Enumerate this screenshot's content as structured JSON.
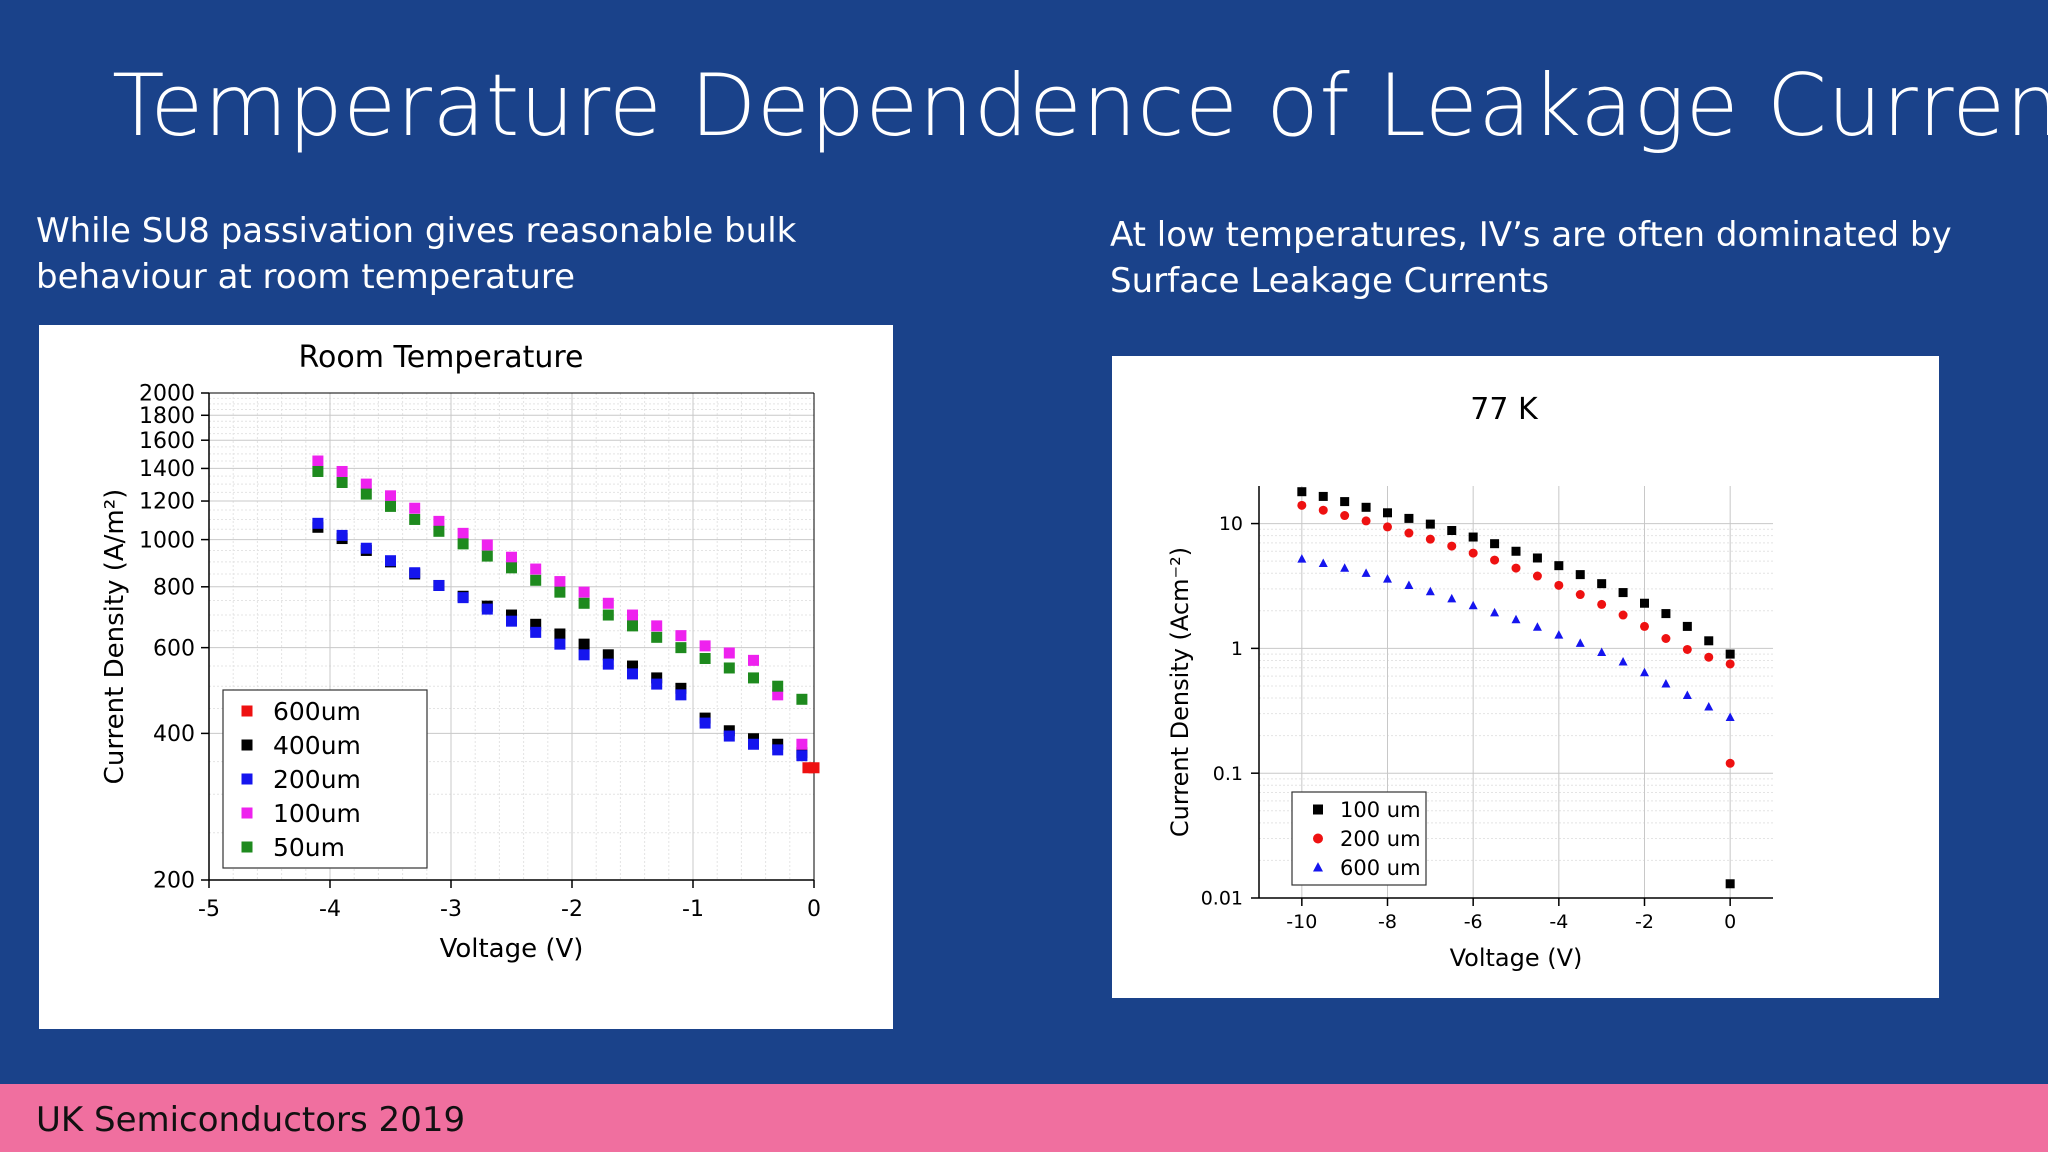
{
  "slide": {
    "title": "Temperature Dependence of Leakage Current",
    "left_caption": "While SU8 passivation gives reasonable bulk behaviour at room temperature",
    "right_caption": "At low temperatures, IV’s are often dominated by Surface Leakage Currents",
    "footer": "UK Semiconductors 2019"
  },
  "chart_data": [
    {
      "type": "scatter",
      "title": "Room Temperature",
      "xlabel": "Voltage (V)",
      "ylabel": "Current Density (A/m²)",
      "xlim": [
        -5,
        0
      ],
      "ylim": [
        200,
        2000
      ],
      "y_scale": "log",
      "x_ticks": [
        "-5",
        "-4",
        "-3",
        "-2",
        "-1",
        "0"
      ],
      "y_ticks": [
        "200",
        "400",
        "600",
        "800",
        "1000",
        "1200",
        "1400",
        "1600",
        "1800",
        "2000"
      ],
      "grid": true,
      "legend_position": "bottom-left",
      "series": [
        {
          "name": "600um",
          "marker": "square",
          "color": "#ee1111",
          "x": [
            -0.05,
            0
          ],
          "y": [
            340,
            340
          ]
        },
        {
          "name": "400um",
          "marker": "square",
          "color": "#000000",
          "x": [
            -4.1,
            -3.9,
            -3.7,
            -3.5,
            -3.3,
            -3.1,
            -2.9,
            -2.7,
            -2.5,
            -2.3,
            -2.1,
            -1.9,
            -1.7,
            -1.5,
            -1.3,
            -1.1,
            -0.9,
            -0.7,
            -0.5,
            -0.3,
            -0.1
          ],
          "y": [
            1060,
            1005,
            950,
            900,
            850,
            805,
            765,
            730,
            700,
            670,
            640,
            610,
            580,
            550,
            520,
            495,
            430,
            405,
            390,
            380,
            365
          ]
        },
        {
          "name": "200um",
          "marker": "square",
          "color": "#1515ee",
          "x": [
            -4.1,
            -3.9,
            -3.7,
            -3.5,
            -3.3,
            -3.1,
            -2.9,
            -2.7,
            -2.5,
            -2.3,
            -2.1,
            -1.9,
            -1.7,
            -1.5,
            -1.3,
            -1.1,
            -0.9,
            -0.7,
            -0.5,
            -0.3,
            -0.1
          ],
          "y": [
            1080,
            1020,
            960,
            905,
            855,
            805,
            760,
            720,
            680,
            645,
            610,
            580,
            555,
            530,
            505,
            480,
            420,
            395,
            380,
            370,
            360
          ]
        },
        {
          "name": "100um",
          "marker": "square",
          "color": "#ee22ee",
          "x": [
            -4.1,
            -3.9,
            -3.7,
            -3.5,
            -3.3,
            -3.1,
            -2.9,
            -2.7,
            -2.5,
            -2.3,
            -2.1,
            -1.9,
            -1.7,
            -1.5,
            -1.3,
            -1.1,
            -0.9,
            -0.7,
            -0.5,
            -0.3,
            -0.1
          ],
          "y": [
            1450,
            1380,
            1300,
            1230,
            1160,
            1090,
            1030,
            975,
            920,
            870,
            820,
            780,
            740,
            700,
            665,
            635,
            605,
            585,
            565,
            480,
            380
          ]
        },
        {
          "name": "50um",
          "marker": "square",
          "color": "#1e8a1e",
          "x": [
            -4.1,
            -3.9,
            -3.7,
            -3.5,
            -3.3,
            -3.1,
            -2.9,
            -2.7,
            -2.5,
            -2.3,
            -2.1,
            -1.9,
            -1.7,
            -1.5,
            -1.3,
            -1.1,
            -0.9,
            -0.7,
            -0.5,
            -0.3,
            -0.1
          ],
          "y": [
            1380,
            1310,
            1240,
            1170,
            1100,
            1040,
            980,
            925,
            875,
            825,
            780,
            740,
            700,
            665,
            630,
            600,
            570,
            545,
            520,
            500,
            470
          ]
        }
      ]
    },
    {
      "type": "scatter",
      "title": "77 K",
      "xlabel": "Voltage (V)",
      "ylabel": "Current Density (Acm⁻²)",
      "xlim": [
        -11,
        1
      ],
      "ylim": [
        0.01,
        20
      ],
      "y_scale": "log",
      "x_ticks": [
        "-10",
        "-8",
        "-6",
        "-4",
        "-2",
        "0"
      ],
      "y_ticks": [
        "0.01",
        "0.1",
        "1",
        "10"
      ],
      "grid": true,
      "legend_position": "bottom-left",
      "series": [
        {
          "name": "100 um",
          "marker": "square",
          "color": "#000000",
          "x": [
            -10,
            -9.5,
            -9,
            -8.5,
            -8,
            -7.5,
            -7,
            -6.5,
            -6,
            -5.5,
            -5,
            -4.5,
            -4,
            -3.5,
            -3,
            -2.5,
            -2,
            -1.5,
            -1,
            -0.5,
            0,
            0
          ],
          "y": [
            18,
            16.5,
            15,
            13.5,
            12.2,
            11,
            9.9,
            8.8,
            7.8,
            6.9,
            6,
            5.3,
            4.6,
            3.9,
            3.3,
            2.8,
            2.3,
            1.9,
            1.5,
            1.15,
            0.9,
            0.013
          ]
        },
        {
          "name": "200 um",
          "marker": "circle",
          "color": "#ee1111",
          "x": [
            -10,
            -9.5,
            -9,
            -8.5,
            -8,
            -7.5,
            -7,
            -6.5,
            -6,
            -5.5,
            -5,
            -4.5,
            -4,
            -3.5,
            -3,
            -2.5,
            -2,
            -1.5,
            -1,
            -0.5,
            0,
            0
          ],
          "y": [
            14,
            12.8,
            11.6,
            10.5,
            9.4,
            8.4,
            7.5,
            6.6,
            5.8,
            5.1,
            4.4,
            3.8,
            3.2,
            2.7,
            2.25,
            1.85,
            1.5,
            1.2,
            0.98,
            0.85,
            0.75,
            0.12
          ]
        },
        {
          "name": "600 um",
          "marker": "triangle",
          "color": "#1515ee",
          "x": [
            -10,
            -9.5,
            -9,
            -8.5,
            -8,
            -7.5,
            -7,
            -6.5,
            -6,
            -5.5,
            -5,
            -4.5,
            -4,
            -3.5,
            -3,
            -2.5,
            -2,
            -1.5,
            -1,
            -0.5,
            0
          ],
          "y": [
            5.2,
            4.8,
            4.4,
            4,
            3.6,
            3.2,
            2.85,
            2.5,
            2.2,
            1.93,
            1.7,
            1.48,
            1.28,
            1.1,
            0.93,
            0.78,
            0.64,
            0.52,
            0.42,
            0.34,
            0.28
          ]
        }
      ]
    }
  ]
}
